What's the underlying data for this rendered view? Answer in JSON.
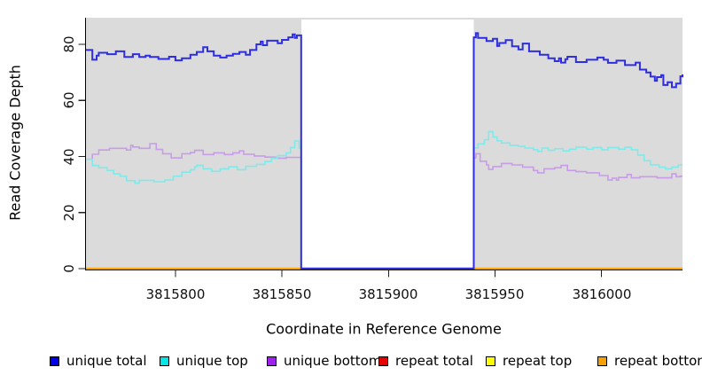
{
  "figure": {
    "xlabel": "Coordinate in Reference Genome",
    "ylabel": "Read Coverage Depth"
  },
  "axes": {
    "x": {
      "tick_labels": [
        "3815800",
        "3815850",
        "3815900",
        "3815950",
        "3816000"
      ]
    },
    "y": {
      "tick_labels": [
        "0",
        "20",
        "40",
        "60",
        "80"
      ]
    }
  },
  "legend": {
    "items": [
      {
        "label": "unique total",
        "color": "#0000E6"
      },
      {
        "label": "unique top",
        "color": "#00E5E5"
      },
      {
        "label": "unique bottom",
        "color": "#A020F0"
      },
      {
        "label": "repeat total",
        "color": "#E60000"
      },
      {
        "label": "repeat top",
        "color": "#FFFF00"
      },
      {
        "label": "repeat bottom",
        "color": "#F7A100"
      }
    ]
  },
  "chart_data": {
    "type": "line",
    "step": true,
    "title": "",
    "xlabel": "Coordinate in Reference Genome",
    "ylabel": "Read Coverage Depth",
    "xlim": [
      3815758,
      3816038
    ],
    "ylim": [
      0,
      89.5
    ],
    "x_ticks": [
      3815800,
      3815850,
      3815900,
      3815950,
      3816000
    ],
    "y_ticks": [
      0,
      20,
      40,
      60,
      80
    ],
    "grid": false,
    "legend_position": "bottom",
    "plot_bg": "#DBDBDB",
    "masked_region": {
      "x_start": 3815859,
      "x_end": 3815940,
      "fill": "#FFFFFF"
    },
    "series": [
      {
        "name": "repeat total",
        "color": "#E60000",
        "width": 1.6,
        "points": [
          [
            3815758,
            0
          ],
          [
            3816038,
            0
          ]
        ]
      },
      {
        "name": "repeat top",
        "color": "#FFFF00",
        "width": 1.6,
        "points": [
          [
            3815758,
            0
          ],
          [
            3816038,
            0
          ]
        ]
      },
      {
        "name": "repeat bottom",
        "color": "#FFA30A",
        "width": 2.2,
        "points": [
          [
            3815758,
            0
          ],
          [
            3816038,
            0
          ]
        ]
      },
      {
        "name": "unique bottom",
        "color": "#C89CE8",
        "width": 1.6,
        "points": [
          [
            3815758,
            39
          ],
          [
            3815761,
            40.8
          ],
          [
            3815764,
            42.3
          ],
          [
            3815769,
            42.9
          ],
          [
            3815777,
            42.3
          ],
          [
            3815779,
            44
          ],
          [
            3815780,
            43.4
          ],
          [
            3815783,
            42.9
          ],
          [
            3815788,
            44.6
          ],
          [
            3815791,
            42.5
          ],
          [
            3815794,
            41
          ],
          [
            3815798,
            39.5
          ],
          [
            3815803,
            41
          ],
          [
            3815807,
            41.4
          ],
          [
            3815809,
            42.2
          ],
          [
            3815813,
            40.7
          ],
          [
            3815818,
            41.3
          ],
          [
            3815823,
            40.7
          ],
          [
            3815827,
            41.3
          ],
          [
            3815830,
            42
          ],
          [
            3815832,
            40.8
          ],
          [
            3815837,
            40.2
          ],
          [
            3815842,
            39.8
          ],
          [
            3815847,
            39.4
          ],
          [
            3815852,
            39.7
          ],
          [
            3815859,
            0
          ],
          [
            3815940,
            39.5
          ],
          [
            3815941,
            41
          ],
          [
            3815943,
            38.3
          ],
          [
            3815946,
            37
          ],
          [
            3815947,
            35.4
          ],
          [
            3815949,
            36.4
          ],
          [
            3815953,
            37.5
          ],
          [
            3815958,
            37
          ],
          [
            3815963,
            36.2
          ],
          [
            3815968,
            35
          ],
          [
            3815970,
            34.2
          ],
          [
            3815973,
            35.6
          ],
          [
            3815978,
            36
          ],
          [
            3815981,
            36.8
          ],
          [
            3815984,
            35
          ],
          [
            3815988,
            34.6
          ],
          [
            3815993,
            34.2
          ],
          [
            3815999,
            33.2
          ],
          [
            3816003,
            31.6
          ],
          [
            3816005,
            32.3
          ],
          [
            3816007,
            31.6
          ],
          [
            3816008,
            32.5
          ],
          [
            3816012,
            33.6
          ],
          [
            3816014,
            32.4
          ],
          [
            3816018,
            32.8
          ],
          [
            3816026,
            32.4
          ],
          [
            3816033,
            33.8
          ],
          [
            3816035,
            32.8
          ],
          [
            3816037,
            33
          ]
        ]
      },
      {
        "name": "unique top",
        "color": "#80EAEA",
        "width": 1.6,
        "points": [
          [
            3815758,
            39
          ],
          [
            3815761,
            36.8
          ],
          [
            3815764,
            36
          ],
          [
            3815768,
            35
          ],
          [
            3815771,
            33.8
          ],
          [
            3815774,
            33
          ],
          [
            3815777,
            31.4
          ],
          [
            3815781,
            30.5
          ],
          [
            3815783,
            31.5
          ],
          [
            3815790,
            31
          ],
          [
            3815795,
            31.6
          ],
          [
            3815799,
            33
          ],
          [
            3815803,
            34.4
          ],
          [
            3815807,
            35.3
          ],
          [
            3815809,
            36.3
          ],
          [
            3815810,
            36.8
          ],
          [
            3815813,
            35.6
          ],
          [
            3815817,
            34.7
          ],
          [
            3815821,
            35.6
          ],
          [
            3815825,
            36.3
          ],
          [
            3815829,
            35.3
          ],
          [
            3815833,
            36.5
          ],
          [
            3815838,
            37.2
          ],
          [
            3815842,
            38.2
          ],
          [
            3815845,
            39.4
          ],
          [
            3815848,
            40.3
          ],
          [
            3815852,
            41.3
          ],
          [
            3815854,
            43.2
          ],
          [
            3815856,
            45.5
          ],
          [
            3815858,
            43
          ],
          [
            3815859,
            0
          ],
          [
            3815940,
            43
          ],
          [
            3815942,
            44.5
          ],
          [
            3815945,
            46
          ],
          [
            3815947,
            48.9
          ],
          [
            3815949,
            47
          ],
          [
            3815951,
            45.6
          ],
          [
            3815953,
            44.8
          ],
          [
            3815957,
            44
          ],
          [
            3815961,
            43.6
          ],
          [
            3815964,
            43
          ],
          [
            3815968,
            42.4
          ],
          [
            3815970,
            41.8
          ],
          [
            3815972,
            43
          ],
          [
            3815975,
            42.2
          ],
          [
            3815978,
            42.8
          ],
          [
            3815982,
            42
          ],
          [
            3815985,
            42.6
          ],
          [
            3815988,
            43.3
          ],
          [
            3815993,
            42.6
          ],
          [
            3815996,
            43.2
          ],
          [
            3816000,
            42.4
          ],
          [
            3816003,
            43.2
          ],
          [
            3816008,
            42.6
          ],
          [
            3816011,
            43.3
          ],
          [
            3816014,
            42.4
          ],
          [
            3816017,
            40.5
          ],
          [
            3816020,
            38.5
          ],
          [
            3816023,
            37
          ],
          [
            3816027,
            36.2
          ],
          [
            3816030,
            35.6
          ],
          [
            3816033,
            36.2
          ],
          [
            3816036,
            37
          ]
        ]
      },
      {
        "name": "unique total",
        "color": "#2E2EDF",
        "width": 2,
        "points": [
          [
            3815758,
            78
          ],
          [
            3815761,
            74.5
          ],
          [
            3815763,
            76
          ],
          [
            3815764,
            77
          ],
          [
            3815768,
            76.5
          ],
          [
            3815772,
            77.5
          ],
          [
            3815776,
            75.5
          ],
          [
            3815780,
            76.5
          ],
          [
            3815783,
            75.5
          ],
          [
            3815786,
            76
          ],
          [
            3815788,
            75.5
          ],
          [
            3815792,
            74.8
          ],
          [
            3815797,
            75.6
          ],
          [
            3815800,
            74.3
          ],
          [
            3815803,
            75
          ],
          [
            3815807,
            76.3
          ],
          [
            3815810,
            77.3
          ],
          [
            3815813,
            79
          ],
          [
            3815815,
            77.5
          ],
          [
            3815818,
            76
          ],
          [
            3815821,
            75.3
          ],
          [
            3815824,
            76
          ],
          [
            3815827,
            76.6
          ],
          [
            3815830,
            77.3
          ],
          [
            3815833,
            76.3
          ],
          [
            3815835,
            78
          ],
          [
            3815838,
            80
          ],
          [
            3815840,
            81
          ],
          [
            3815841,
            79.7
          ],
          [
            3815843,
            81.3
          ],
          [
            3815848,
            80.4
          ],
          [
            3815850,
            81.6
          ],
          [
            3815853,
            82.5
          ],
          [
            3815855,
            83.6
          ],
          [
            3815856,
            82.3
          ],
          [
            3815857,
            83.2
          ],
          [
            3815859,
            0
          ],
          [
            3815940,
            82.5
          ],
          [
            3815941,
            84
          ],
          [
            3815942,
            82.3
          ],
          [
            3815946,
            81.2
          ],
          [
            3815949,
            82
          ],
          [
            3815951,
            79.4
          ],
          [
            3815952,
            80.5
          ],
          [
            3815955,
            81.5
          ],
          [
            3815958,
            79.3
          ],
          [
            3815961,
            78.2
          ],
          [
            3815963,
            80.3
          ],
          [
            3815966,
            77.5
          ],
          [
            3815971,
            76.3
          ],
          [
            3815975,
            75
          ],
          [
            3815978,
            74
          ],
          [
            3815980,
            75
          ],
          [
            3815981,
            73.5
          ],
          [
            3815983,
            74.7
          ],
          [
            3815984,
            75.6
          ],
          [
            3815988,
            73.7
          ],
          [
            3815993,
            74.5
          ],
          [
            3815998,
            75.3
          ],
          [
            3816001,
            74.5
          ],
          [
            3816003,
            73.4
          ],
          [
            3816007,
            74.2
          ],
          [
            3816011,
            72.6
          ],
          [
            3816016,
            73.5
          ],
          [
            3816018,
            71
          ],
          [
            3816021,
            70
          ],
          [
            3816023,
            68.5
          ],
          [
            3816025,
            67
          ],
          [
            3816026,
            68.3
          ],
          [
            3816028,
            69
          ],
          [
            3816029,
            65.5
          ],
          [
            3816031,
            66.5
          ],
          [
            3816033,
            64.7
          ],
          [
            3816035,
            66
          ],
          [
            3816037,
            68.6
          ],
          [
            3816038,
            69.3
          ]
        ]
      }
    ]
  }
}
